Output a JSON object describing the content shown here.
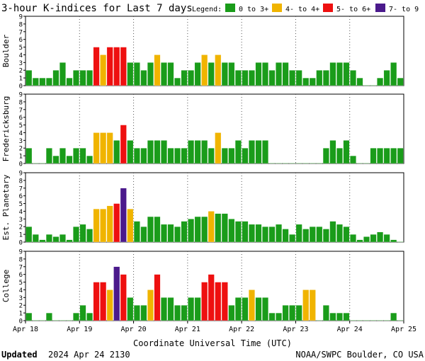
{
  "title": "3-hour K-indices for Last 7 days",
  "legend": {
    "label": "Legend:",
    "entries": [
      {
        "label": "0 to 3+",
        "color": "#1a9c1a"
      },
      {
        "label": "4- to 4+",
        "color": "#f0b400"
      },
      {
        "label": "5- to 6+",
        "color": "#ee1010"
      },
      {
        "label": "7- to 9",
        "color": "#4b1a8c"
      }
    ]
  },
  "footer": {
    "updated_label": "Updated",
    "updated_value": "2024 Apr 24 2130",
    "credit": "NOAA/SWPC Boulder, CO USA"
  },
  "chart_data": {
    "type": "bar",
    "xlabel": "Coordinate Universal Time (UTC)",
    "x_ticks": [
      "Apr 18",
      "Apr 19",
      "Apr 20",
      "Apr 21",
      "Apr 22",
      "Apr 23",
      "Apr 24",
      "Apr 25"
    ],
    "ylim": [
      0,
      9
    ],
    "y_ticks": [
      0,
      1,
      2,
      3,
      4,
      5,
      6,
      7,
      8,
      9
    ],
    "bins_per_day": 8,
    "days": 7,
    "panels": [
      {
        "name": "Boulder",
        "values": [
          2,
          1,
          1,
          1,
          2,
          3,
          1,
          2,
          2,
          2,
          5,
          4,
          5,
          5,
          5,
          3,
          3,
          2,
          3,
          4,
          3,
          3,
          1,
          2,
          2,
          3,
          4,
          3,
          4,
          3,
          3,
          2,
          2,
          2,
          3,
          3,
          2,
          3,
          3,
          2,
          2,
          1,
          1,
          2,
          2,
          3,
          3,
          3,
          2,
          1,
          0,
          0,
          1,
          2,
          3,
          1,
          0
        ]
      },
      {
        "name": "Fredericksburg",
        "values": [
          2,
          0,
          0,
          2,
          1,
          2,
          1,
          2,
          2,
          1,
          4,
          4,
          4,
          3,
          5,
          3,
          2,
          2,
          3,
          3,
          3,
          2,
          2,
          2,
          3,
          3,
          3,
          2,
          4,
          2,
          2,
          3,
          2,
          3,
          3,
          3,
          0,
          0,
          0,
          0,
          0,
          0,
          0,
          0,
          2,
          3,
          2,
          3,
          1,
          0,
          0,
          2,
          2,
          2,
          2,
          2,
          0
        ]
      },
      {
        "name": "Est. Planetary",
        "values": [
          2,
          1,
          0.3,
          1,
          0.7,
          1,
          0.3,
          2,
          2.3,
          1.7,
          4.3,
          4.3,
          4.7,
          5,
          7,
          4.3,
          2.7,
          2,
          3.3,
          3.3,
          2.3,
          2.3,
          2,
          2.7,
          3,
          3.3,
          3.3,
          4,
          3.7,
          3.7,
          3,
          2.7,
          2.7,
          2.3,
          2.3,
          2,
          2,
          2.3,
          1.7,
          1,
          2.3,
          1.7,
          2,
          2,
          1.7,
          2.7,
          2.3,
          2,
          1,
          0.3,
          0.7,
          1,
          1.3,
          1,
          0.3,
          0
        ]
      },
      {
        "name": "College",
        "values": [
          1,
          0,
          0,
          1,
          0,
          0,
          0,
          1,
          2,
          1,
          5,
          5,
          4,
          7,
          6,
          3,
          2,
          2,
          4,
          6,
          3,
          3,
          2,
          2,
          3,
          3,
          5,
          6,
          5,
          5,
          2,
          3,
          3,
          4,
          3,
          3,
          1,
          1,
          2,
          2,
          2,
          4,
          4,
          0,
          2,
          1,
          1,
          1,
          0,
          0,
          0,
          0,
          0,
          0,
          1,
          0,
          0
        ]
      }
    ]
  }
}
